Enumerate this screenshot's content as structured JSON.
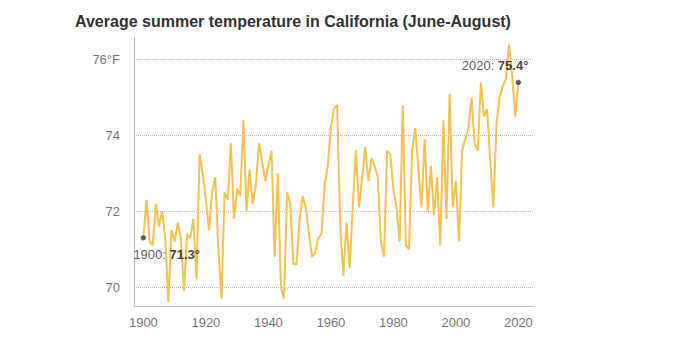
{
  "chart_data": {
    "type": "line",
    "title": "Average summer temperature in California (June-August)",
    "x": [
      1900,
      1901,
      1902,
      1903,
      1904,
      1905,
      1906,
      1907,
      1908,
      1909,
      1910,
      1911,
      1912,
      1913,
      1914,
      1915,
      1916,
      1917,
      1918,
      1919,
      1920,
      1921,
      1922,
      1923,
      1924,
      1925,
      1926,
      1927,
      1928,
      1929,
      1930,
      1931,
      1932,
      1933,
      1934,
      1935,
      1936,
      1937,
      1938,
      1939,
      1940,
      1941,
      1942,
      1943,
      1944,
      1945,
      1946,
      1947,
      1948,
      1949,
      1950,
      1951,
      1952,
      1953,
      1954,
      1955,
      1956,
      1957,
      1958,
      1959,
      1960,
      1961,
      1962,
      1963,
      1964,
      1965,
      1966,
      1967,
      1968,
      1969,
      1970,
      1971,
      1972,
      1973,
      1974,
      1975,
      1976,
      1977,
      1978,
      1979,
      1980,
      1981,
      1982,
      1983,
      1984,
      1985,
      1986,
      1987,
      1988,
      1989,
      1990,
      1991,
      1992,
      1993,
      1994,
      1995,
      1996,
      1997,
      1998,
      1999,
      2000,
      2001,
      2002,
      2003,
      2004,
      2005,
      2006,
      2007,
      2008,
      2009,
      2010,
      2011,
      2012,
      2013,
      2014,
      2015,
      2016,
      2017,
      2018,
      2019,
      2020
    ],
    "values": [
      71.3,
      72.3,
      71.2,
      71.1,
      72.2,
      71.6,
      72.0,
      71.3,
      69.6,
      71.5,
      71.2,
      71.7,
      71.3,
      69.9,
      71.4,
      71.3,
      71.8,
      70.2,
      73.5,
      73.0,
      72.3,
      71.5,
      72.5,
      72.9,
      71.0,
      69.7,
      72.5,
      72.3,
      73.8,
      71.8,
      72.6,
      72.4,
      74.4,
      72.0,
      73.1,
      72.2,
      72.7,
      73.8,
      73.3,
      72.8,
      73.2,
      73.6,
      70.8,
      73.0,
      70.0,
      69.7,
      72.5,
      72.2,
      70.6,
      70.6,
      71.8,
      72.4,
      72.1,
      71.4,
      70.8,
      70.9,
      71.3,
      71.4,
      72.7,
      73.2,
      74.2,
      74.7,
      74.8,
      71.6,
      70.3,
      71.7,
      70.5,
      72.1,
      73.6,
      72.1,
      72.9,
      73.7,
      72.8,
      73.4,
      73.2,
      72.9,
      71.2,
      70.8,
      73.6,
      73.5,
      72.6,
      72.1,
      71.2,
      74.8,
      71.1,
      71.0,
      73.6,
      74.2,
      73.1,
      72.1,
      73.9,
      72.0,
      73.2,
      71.9,
      72.9,
      71.1,
      74.4,
      71.8,
      75.1,
      72.1,
      72.8,
      71.2,
      73.6,
      73.9,
      74.2,
      75.0,
      73.8,
      73.6,
      75.4,
      74.5,
      74.7,
      73.3,
      72.1,
      74.3,
      75.0,
      75.3,
      75.5,
      76.4,
      75.6,
      74.5,
      75.4
    ],
    "color": "#f5c150",
    "xlim": [
      1897,
      2025
    ],
    "xticks": [
      1900,
      1920,
      1940,
      1960,
      1980,
      2000,
      2020
    ],
    "ylim": [
      69.5,
      76.6
    ],
    "yticks": [
      70,
      72,
      74,
      {
        "value": 76,
        "label": "76°F"
      }
    ],
    "grid": true,
    "annotations": [
      {
        "x": 1900,
        "y": 71.3,
        "label": "1900: ",
        "value_label": "71.3°"
      },
      {
        "x": 2020,
        "y": 75.4,
        "label": "2020: ",
        "value_label": "75.4°"
      }
    ]
  }
}
